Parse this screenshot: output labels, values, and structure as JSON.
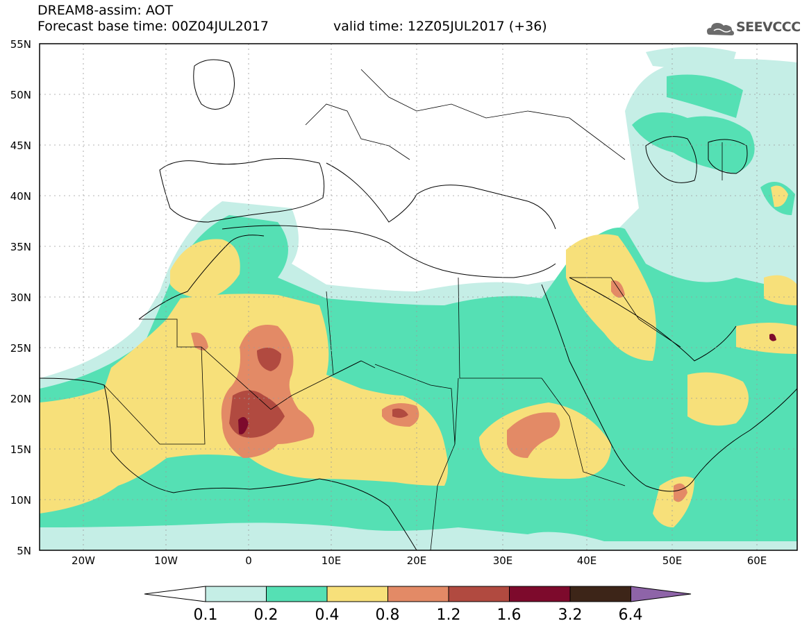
{
  "header": {
    "title": "DREAM8-assim: AOT",
    "base_time": "Forecast base time: 00Z04JUL2017",
    "valid_time": "valid time: 12Z05JUL2017 (+36)"
  },
  "logo": {
    "text": "SEEVCCC",
    "icon": "cloud-icon"
  },
  "map": {
    "lat_labels": [
      "55N",
      "50N",
      "45N",
      "40N",
      "35N",
      "30N",
      "25N",
      "20N",
      "15N",
      "10N",
      "5N"
    ],
    "lon_labels": [
      "20W",
      "10W",
      "0",
      "10E",
      "20E",
      "30E",
      "40E",
      "50E",
      "60E"
    ]
  },
  "colorbar": {
    "colors": [
      "#c5eee6",
      "#55e0b4",
      "#f7e07a",
      "#e38a66",
      "#b14a40",
      "#7d0a2c",
      "#3d2518"
    ],
    "extend_low_color": "#ffffff",
    "extend_high_color": "#8e64a8",
    "tick_labels": [
      "0.1",
      "0.2",
      "0.4",
      "0.8",
      "1.2",
      "1.6",
      "3.2",
      "6.4"
    ]
  }
}
